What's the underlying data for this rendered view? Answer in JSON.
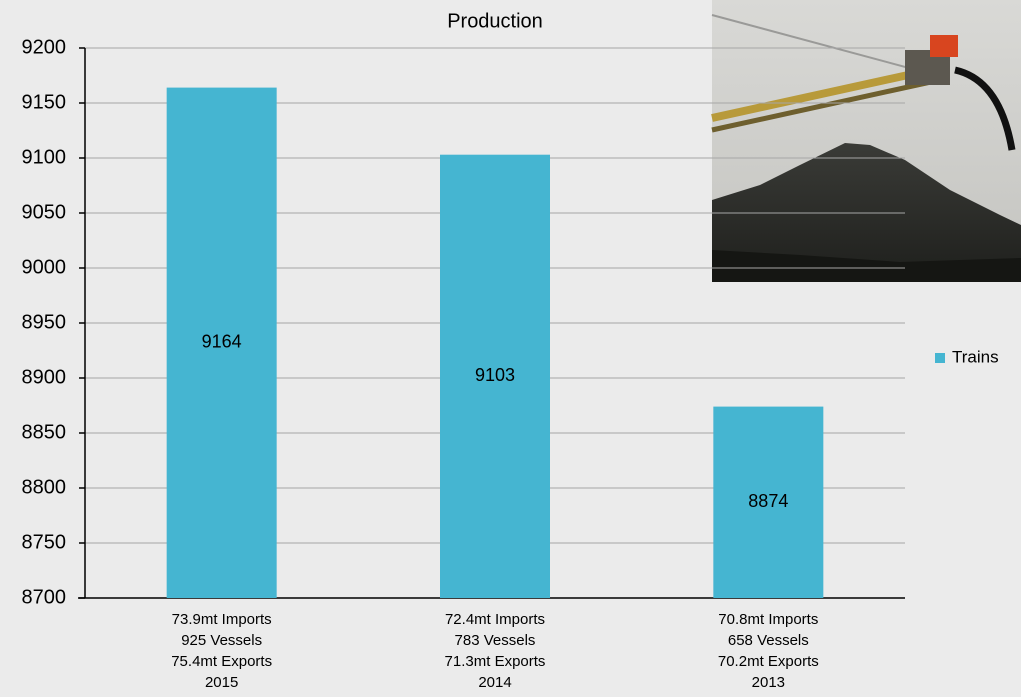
{
  "chart_data": {
    "type": "bar",
    "title": "Production",
    "categories": [
      [
        "73.9mt Imports",
        "925 Vessels",
        "75.4mt Exports",
        "2015"
      ],
      [
        "72.4mt Imports",
        "783 Vessels",
        "71.3mt Exports",
        "2014"
      ],
      [
        "70.8mt Imports",
        "658 Vessels",
        "70.2mt Exports",
        "2013"
      ]
    ],
    "series": [
      {
        "name": "Trains",
        "color": "#45b5d1",
        "values": [
          9164,
          9103,
          8874
        ]
      }
    ],
    "ylim": [
      8700,
      9200
    ],
    "yticks": [
      8700,
      8750,
      8800,
      8850,
      8900,
      8950,
      9000,
      9050,
      9100,
      9150,
      9200
    ],
    "grid": true,
    "legend": "right"
  }
}
